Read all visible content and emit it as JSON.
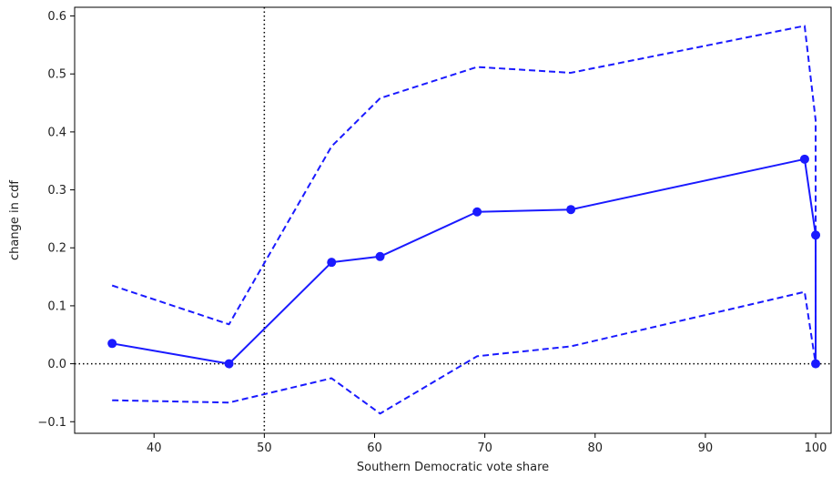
{
  "chart_data": {
    "type": "line",
    "title": "",
    "xlabel": "Southern Democratic vote share",
    "ylabel": "change in cdf",
    "xlim": [
      32.8,
      101.4
    ],
    "ylim": [
      -0.12,
      0.615
    ],
    "xticks": [
      40,
      50,
      60,
      70,
      80,
      90,
      100
    ],
    "yticks": [
      -0.1,
      0.0,
      0.1,
      0.2,
      0.3,
      0.4,
      0.5,
      0.6
    ],
    "xtick_labels": [
      "40",
      "50",
      "60",
      "70",
      "80",
      "90",
      "100"
    ],
    "ytick_labels": [
      "−0.1",
      "0.0",
      "0.1",
      "0.2",
      "0.3",
      "0.4",
      "0.5",
      "0.6"
    ],
    "grid": false,
    "legend": "none",
    "reference_lines": {
      "vertical_x": 50,
      "horizontal_y": 0,
      "color": "#000000",
      "style": "dotted"
    },
    "series": [
      {
        "style": "solid",
        "marker": "circle",
        "color": "#1a1aff",
        "x": [
          36.2,
          46.8,
          56.1,
          60.5,
          69.3,
          77.8,
          99.0,
          100.0,
          100.0
        ],
        "y": [
          0.035,
          0.0,
          0.175,
          0.185,
          0.262,
          0.266,
          0.353,
          0.222,
          0.0
        ]
      },
      {
        "style": "dashed",
        "marker": "none",
        "color": "#1a1aff",
        "x": [
          36.2,
          46.8,
          56.1,
          60.5,
          69.3,
          77.8,
          99.0,
          100.0,
          100.0
        ],
        "y": [
          0.135,
          0.068,
          0.375,
          0.458,
          0.512,
          0.502,
          0.583,
          0.42,
          0.0
        ]
      },
      {
        "style": "dashed",
        "marker": "none",
        "color": "#1a1aff",
        "x": [
          36.2,
          46.8,
          56.1,
          60.5,
          69.3,
          77.8,
          99.0,
          100.0,
          100.0
        ],
        "y": [
          -0.063,
          -0.067,
          -0.025,
          -0.086,
          0.013,
          0.03,
          0.124,
          0.0,
          0.0
        ]
      }
    ]
  }
}
